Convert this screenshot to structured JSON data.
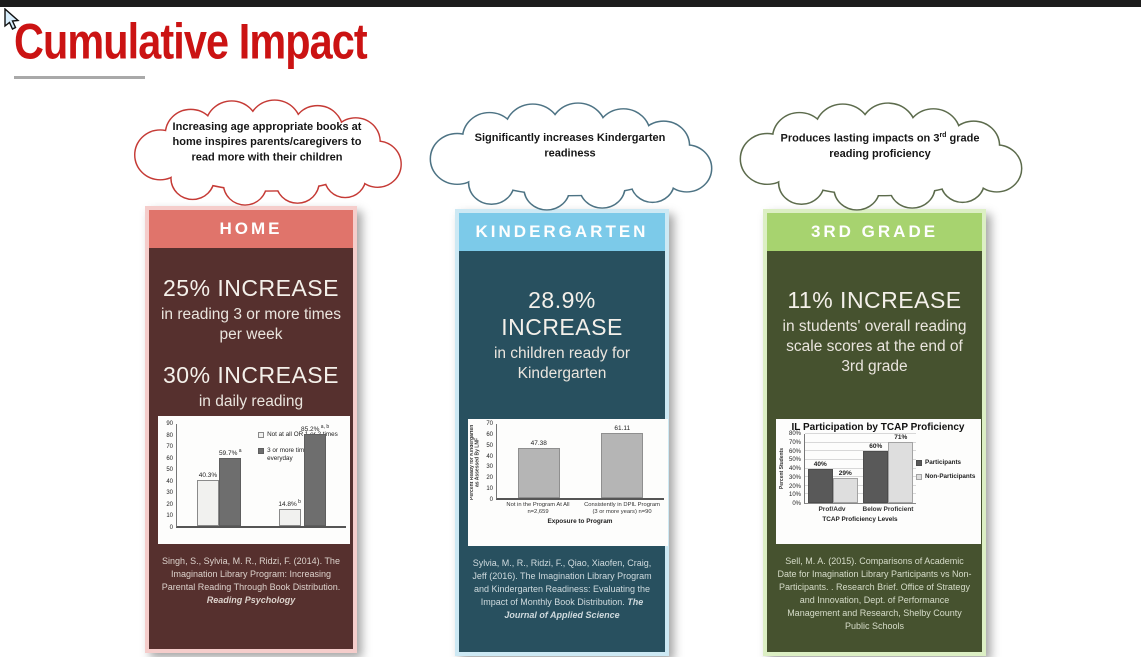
{
  "title": "Cumulative Impact",
  "colors": {
    "title_red": "#cb1313",
    "home_header": "#e0746b",
    "home_body": "#56302e",
    "home_frame": "#f5cdcb",
    "home_cloud_stroke": "#c53a35",
    "kindergarten_header": "#7ccae9",
    "kindergarten_body": "#28505f",
    "kindergarten_frame": "#cde9f4",
    "kindergarten_cloud_stroke": "#4d7384",
    "third_grade_header": "#a7d36f",
    "third_grade_body": "#46522f",
    "third_grade_frame": "#dcefc4",
    "third_grade_cloud_stroke": "#5c6b4c"
  },
  "panels": [
    {
      "cloud": {
        "before": "Increasing age appropriate books at home inspires parents/caregivers to read more with their children",
        "sup": "",
        "after": ""
      },
      "header": "HOME",
      "stats": [
        {
          "big": "25% INCREASE",
          "sub": "in reading 3 or more times per week"
        },
        {
          "big": "30% INCREASE",
          "sub": "in daily reading"
        }
      ],
      "citation": {
        "text": "Singh, S., Sylvia, M. R., Ridzi, F. (2014). The Imagination Library Program: Increasing Parental Reading Through Book Distribution.",
        "source": "Reading Psychology"
      }
    },
    {
      "cloud": {
        "before": "Significantly increases Kindergarten readiness",
        "sup": "",
        "after": ""
      },
      "header": "KINDERGARTEN",
      "stats": [
        {
          "big": "28.9% INCREASE",
          "sub": "in children ready for Kindergarten"
        }
      ],
      "citation": {
        "text": "Sylvia, M., R., Ridzi, F., Qiao, Xiaofen, Craig, Jeff (2016). The Imagination Library Program and Kindergarten Readiness: Evaluating the Impact of Monthly Book Distribution.",
        "source": "The Journal of Applied Science"
      }
    },
    {
      "cloud": {
        "before": "Produces lasting impacts on 3",
        "sup": "rd",
        "after": " grade reading proficiency"
      },
      "header": "3RD GRADE",
      "stats": [
        {
          "big": "11% INCREASE",
          "sub": "in students' overall reading scale scores at the end of 3rd grade"
        }
      ],
      "citation": {
        "text": "Sell, M. A. (2015). Comparisons of Academic Date for Imagination Library Participants vs Non-Participants. . Research Brief. Office of Strategy and Innovation, Dept. of Performance Management and Research, Shelby County Public Schools",
        "source": ""
      }
    }
  ],
  "chart_data": [
    {
      "type": "bar",
      "title": "",
      "ylabel": "",
      "xlabel": "",
      "y": {
        "min": 0,
        "max": 90,
        "step": 10,
        "suffix": ""
      },
      "categories": [
        "",
        ""
      ],
      "series": [
        {
          "name": "Not at all OR 1 or 2 times",
          "color": "#f1f1ef",
          "border": "#8a8a8a",
          "values": [
            40.3,
            14.8
          ],
          "labels": [
            {
              "t": "40.3%",
              "sup": ""
            },
            {
              "t": "14.8%",
              "sup": "b"
            }
          ]
        },
        {
          "name": "3 or more times OR everyday",
          "color": "#6e6e6e",
          "border": "#5e5e5e",
          "values": [
            59.7,
            85.2
          ],
          "labels": [
            {
              "t": "59.7%",
              "sup": "a"
            },
            {
              "t": "85.2%",
              "sup": "a, b"
            }
          ]
        }
      ],
      "legend": "inside",
      "grid": false
    },
    {
      "type": "bar",
      "title": "",
      "ylabel": "Percent Ready for Kindergarten as Assessed By LNF",
      "xlabel": "Exposure to Program",
      "y": {
        "min": 0,
        "max": 70,
        "step": 10,
        "suffix": ""
      },
      "categories": [
        "Not in the Program At All n=2,659",
        "Consistently in DPIL Program (3 or more years) n=90"
      ],
      "series": [
        {
          "name": "",
          "color": "#b5b5b5",
          "border": "#8f8f8f",
          "values": [
            47.38,
            61.11
          ],
          "labels": [
            {
              "t": "47.38",
              "sup": ""
            },
            {
              "t": "61.11",
              "sup": ""
            }
          ]
        }
      ],
      "legend": "none",
      "grid": false
    },
    {
      "type": "bar",
      "title": "IL Participation by TCAP Proficiency",
      "ylabel": "Percent Students",
      "xlabel": "TCAP Proficiency Levels",
      "y": {
        "min": 0,
        "max": 80,
        "step": 10,
        "suffix": "%"
      },
      "categories": [
        "Prof/Adv",
        "Below Proficient"
      ],
      "series": [
        {
          "name": "Participants",
          "color": "#595959",
          "border": "#4c4c4c",
          "values": [
            40,
            60
          ],
          "labels": [
            {
              "t": "40%",
              "sup": ""
            },
            {
              "t": "60%",
              "sup": ""
            }
          ]
        },
        {
          "name": "Non-Participants",
          "color": "#dedede",
          "border": "#a3a3a3",
          "values": [
            29,
            71
          ],
          "labels": [
            {
              "t": "29%",
              "sup": ""
            },
            {
              "t": "71%",
              "sup": ""
            }
          ]
        }
      ],
      "legend": "right",
      "grid": true
    }
  ]
}
